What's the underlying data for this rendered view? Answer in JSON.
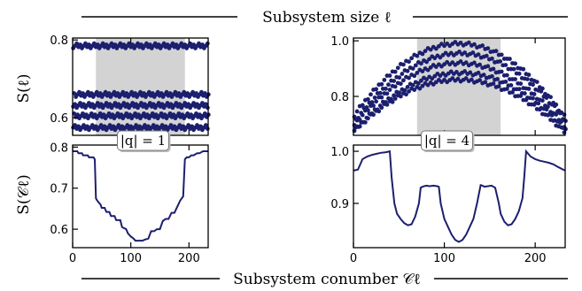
{
  "figure": {
    "top_title": "Subsystem size ℓ",
    "bottom_title": "Subsystem conumber 𝒞ℓ"
  },
  "colors": {
    "series": "#1c1f6e",
    "shade": "#d3d3d3",
    "axis": "#000000",
    "label_box_stroke": "#777777"
  },
  "chart_data": [
    {
      "id": "top-left",
      "type": "scatter",
      "title": "",
      "xlabel": "",
      "ylabel": "S(ℓ)",
      "xlim": [
        0,
        233
      ],
      "ylim": [
        0.555,
        0.805
      ],
      "yticks": [
        0.6,
        0.8
      ],
      "ytick_labels": [
        "0.6",
        "0.8"
      ],
      "xticks": [
        0,
        100,
        200
      ],
      "shaded_region": [
        40,
        193
      ],
      "levels": [
        0.785,
        0.79,
        0.648,
        0.66,
        0.625,
        0.632,
        0.598,
        0.605,
        0.575
      ],
      "series": [
        {
          "x_range": [
            1,
            232
          ],
          "step": 3,
          "bands": [
            0.785,
            0.66,
            0.632,
            0.605,
            0.575
          ]
        }
      ]
    },
    {
      "id": "top-right",
      "type": "scatter",
      "title": "",
      "xlabel": "",
      "ylabel": "",
      "xlim": [
        0,
        233
      ],
      "ylim": [
        0.66,
        1.01
      ],
      "yticks": [
        0.8,
        1.0
      ],
      "ytick_labels": [
        "0.8",
        "1.0"
      ],
      "xticks": [
        0,
        100,
        200
      ],
      "shaded_region": [
        70,
        162
      ],
      "series": [
        {
          "x_range": [
            1,
            232
          ],
          "step": 3,
          "bands": [
            0.99,
            0.955,
            0.92,
            0.885,
            0.86
          ]
        }
      ]
    },
    {
      "id": "bottom-left",
      "type": "line",
      "title": "",
      "xlabel": "",
      "ylabel": "S(𝒞ℓ)",
      "annotation": "|q| = 1",
      "xlim": [
        0,
        233
      ],
      "ylim": [
        0.555,
        0.805
      ],
      "yticks": [
        0.6,
        0.7,
        0.8
      ],
      "ytick_labels": [
        "0.6",
        "0.7",
        "0.8"
      ],
      "xticks": [
        0,
        100,
        200
      ],
      "xtick_labels": [
        "0",
        "100",
        "200"
      ],
      "series": [
        {
          "x": [
            0,
            8,
            10,
            16,
            18,
            26,
            28,
            36,
            38,
            40,
            42,
            45,
            48,
            50,
            55,
            58,
            63,
            66,
            72,
            75,
            82,
            85,
            92,
            95,
            100,
            104,
            108,
            112,
            116,
            120,
            125,
            130,
            135,
            140,
            145,
            150,
            155,
            160,
            165,
            170,
            175,
            180,
            185,
            190,
            193,
            196,
            200,
            204,
            208,
            214,
            218,
            224,
            228,
            233
          ],
          "y": [
            0.79,
            0.79,
            0.785,
            0.785,
            0.78,
            0.78,
            0.775,
            0.775,
            0.77,
            0.675,
            0.67,
            0.665,
            0.66,
            0.652,
            0.652,
            0.642,
            0.642,
            0.632,
            0.632,
            0.622,
            0.622,
            0.605,
            0.6,
            0.59,
            0.582,
            0.578,
            0.572,
            0.572,
            0.572,
            0.572,
            0.575,
            0.577,
            0.595,
            0.595,
            0.6,
            0.6,
            0.62,
            0.625,
            0.625,
            0.64,
            0.64,
            0.655,
            0.67,
            0.68,
            0.77,
            0.775,
            0.775,
            0.78,
            0.78,
            0.785,
            0.785,
            0.79,
            0.79,
            0.79
          ]
        }
      ]
    },
    {
      "id": "bottom-right",
      "type": "line",
      "title": "",
      "xlabel": "",
      "ylabel": "",
      "annotation": "|q| = 4",
      "xlim": [
        0,
        233
      ],
      "ylim": [
        0.815,
        1.012
      ],
      "yticks": [
        0.9,
        1.0
      ],
      "ytick_labels": [
        "0.9",
        "1.0"
      ],
      "xticks": [
        0,
        100,
        200
      ],
      "xtick_labels": [
        "0",
        "100",
        "200"
      ],
      "series": [
        {
          "x": [
            0,
            5,
            10,
            15,
            20,
            25,
            30,
            35,
            40,
            42,
            45,
            48,
            52,
            56,
            60,
            64,
            68,
            72,
            74,
            76,
            80,
            84,
            88,
            92,
            94,
            96,
            100,
            104,
            108,
            112,
            116,
            120,
            124,
            128,
            132,
            136,
            140,
            142,
            144,
            148,
            152,
            156,
            160,
            162,
            166,
            170,
            174,
            178,
            182,
            186,
            188,
            190,
            195,
            200,
            205,
            210,
            215,
            220,
            225,
            233
          ],
          "y": [
            0.963,
            0.965,
            0.985,
            0.99,
            0.993,
            0.995,
            0.997,
            0.998,
            1.0,
            0.95,
            0.9,
            0.88,
            0.87,
            0.862,
            0.858,
            0.86,
            0.875,
            0.9,
            0.93,
            0.932,
            0.934,
            0.933,
            0.934,
            0.933,
            0.932,
            0.9,
            0.87,
            0.855,
            0.84,
            0.83,
            0.826,
            0.83,
            0.84,
            0.855,
            0.87,
            0.9,
            0.935,
            0.934,
            0.932,
            0.933,
            0.934,
            0.93,
            0.9,
            0.88,
            0.865,
            0.858,
            0.86,
            0.87,
            0.885,
            0.91,
            0.95,
            1.0,
            0.99,
            0.985,
            0.982,
            0.98,
            0.978,
            0.975,
            0.97,
            0.963
          ]
        }
      ]
    }
  ]
}
